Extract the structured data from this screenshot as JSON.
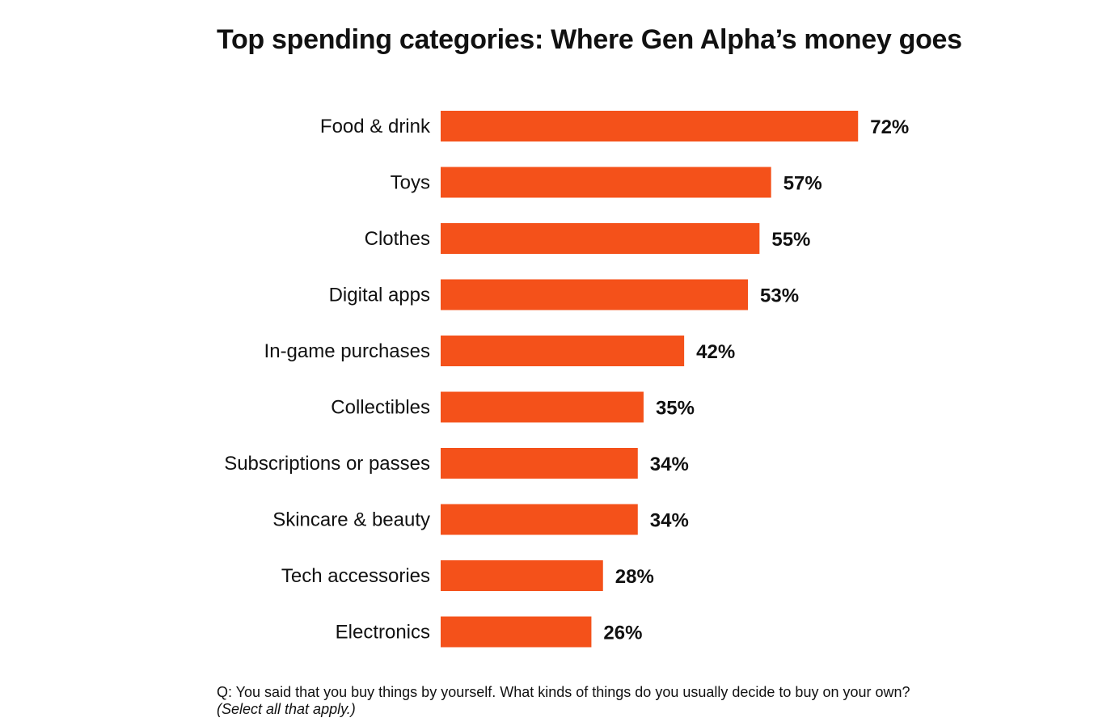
{
  "chart_data": {
    "type": "bar",
    "orientation": "horizontal",
    "title": "Top spending categories: Where Gen Alpha’s money goes",
    "categories": [
      "Food & drink",
      "Toys",
      "Clothes",
      "Digital apps",
      "In-game purchases",
      "Collectibles",
      "Subscriptions or passes",
      "Skincare & beauty",
      "Tech accessories",
      "Electronics"
    ],
    "values": [
      72,
      57,
      55,
      53,
      42,
      35,
      34,
      34,
      28,
      26
    ],
    "value_labels": [
      "72%",
      "57%",
      "55%",
      "53%",
      "42%",
      "35%",
      "34%",
      "34%",
      "28%",
      "26%"
    ],
    "unit": "%",
    "xlabel": "",
    "ylabel": "",
    "bar_color": "#F4511A",
    "grid": false,
    "legend": "none"
  },
  "footnote": {
    "question": "Q: You said that you buy things by yourself. What kinds of things do you usually decide to buy on your own?",
    "note": "(Select all that apply.)"
  }
}
